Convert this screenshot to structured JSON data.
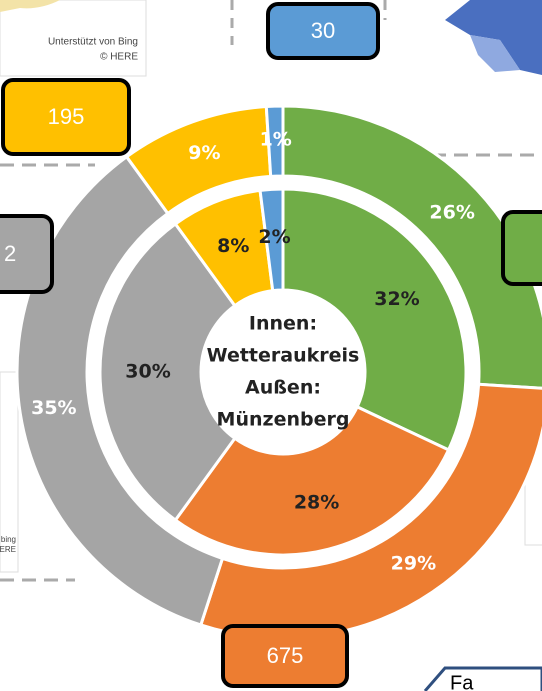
{
  "chart_data": {
    "type": "donut",
    "colors": [
      "#70ad47",
      "#ed7d31",
      "#a5a5a5",
      "#ffc000",
      "#5b9bd5"
    ],
    "series": [
      {
        "values": [
          32,
          28,
          30,
          8,
          2
        ],
        "value_labels": [
          "32%",
          "28%",
          "30%",
          "8%",
          "2%"
        ]
      },
      {
        "values": [
          26,
          29,
          35,
          9,
          1
        ],
        "value_labels": [
          "26%",
          "29%",
          "35%",
          "9%",
          "1%"
        ]
      }
    ],
    "center_label": [
      "Innen:",
      "Wetteraukreis",
      "Außen:",
      "Münzenberg"
    ],
    "annotations": [
      {
        "text": "30",
        "color": "#5b9bd5"
      },
      {
        "text": "195",
        "color": "#ffc000"
      },
      {
        "text": "675",
        "color": "#ed7d31"
      },
      {
        "text": "2",
        "color": "#a5a5a5"
      },
      {
        "color": "#70ad47"
      }
    ],
    "map_texts": [
      "Unterstützt von Bing",
      "© HERE",
      "bing",
      "HERE",
      "Fa"
    ]
  }
}
